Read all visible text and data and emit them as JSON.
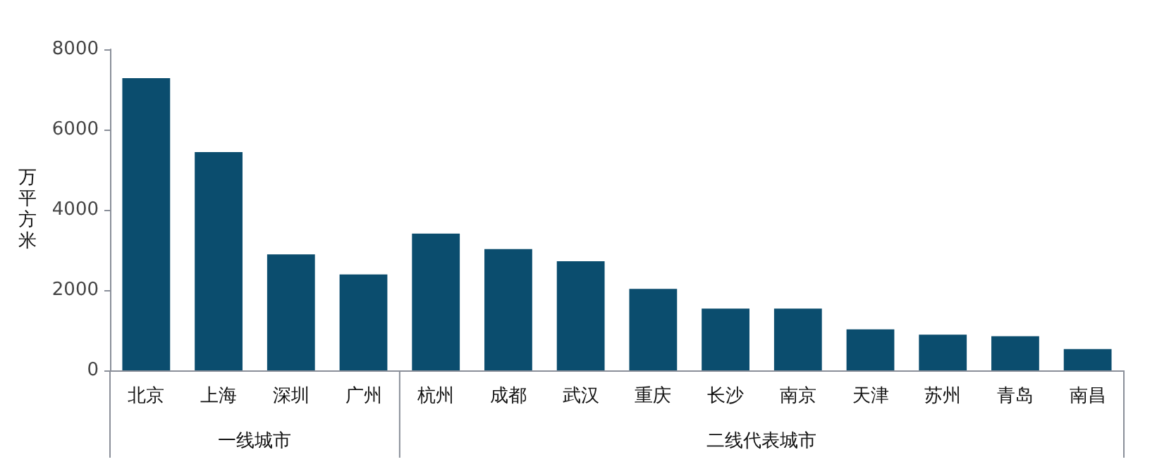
{
  "chart_data": {
    "type": "bar",
    "ylabel": "万平方米",
    "categories": [
      "北京",
      "上海",
      "深圳",
      "广州",
      "杭州",
      "成都",
      "武汉",
      "重庆",
      "长沙",
      "南京",
      "天津",
      "苏州",
      "青岛",
      "南昌"
    ],
    "values": [
      7280,
      5440,
      2890,
      2390,
      3410,
      3020,
      2720,
      2030,
      1540,
      1540,
      1020,
      890,
      850,
      530
    ],
    "color": "#0b4d6e",
    "ylim": [
      0,
      8000
    ],
    "yticks": [
      0,
      2000,
      4000,
      6000,
      8000
    ],
    "annotations": [
      "一线城市",
      "二线代表城市"
    ],
    "grid": false
  }
}
